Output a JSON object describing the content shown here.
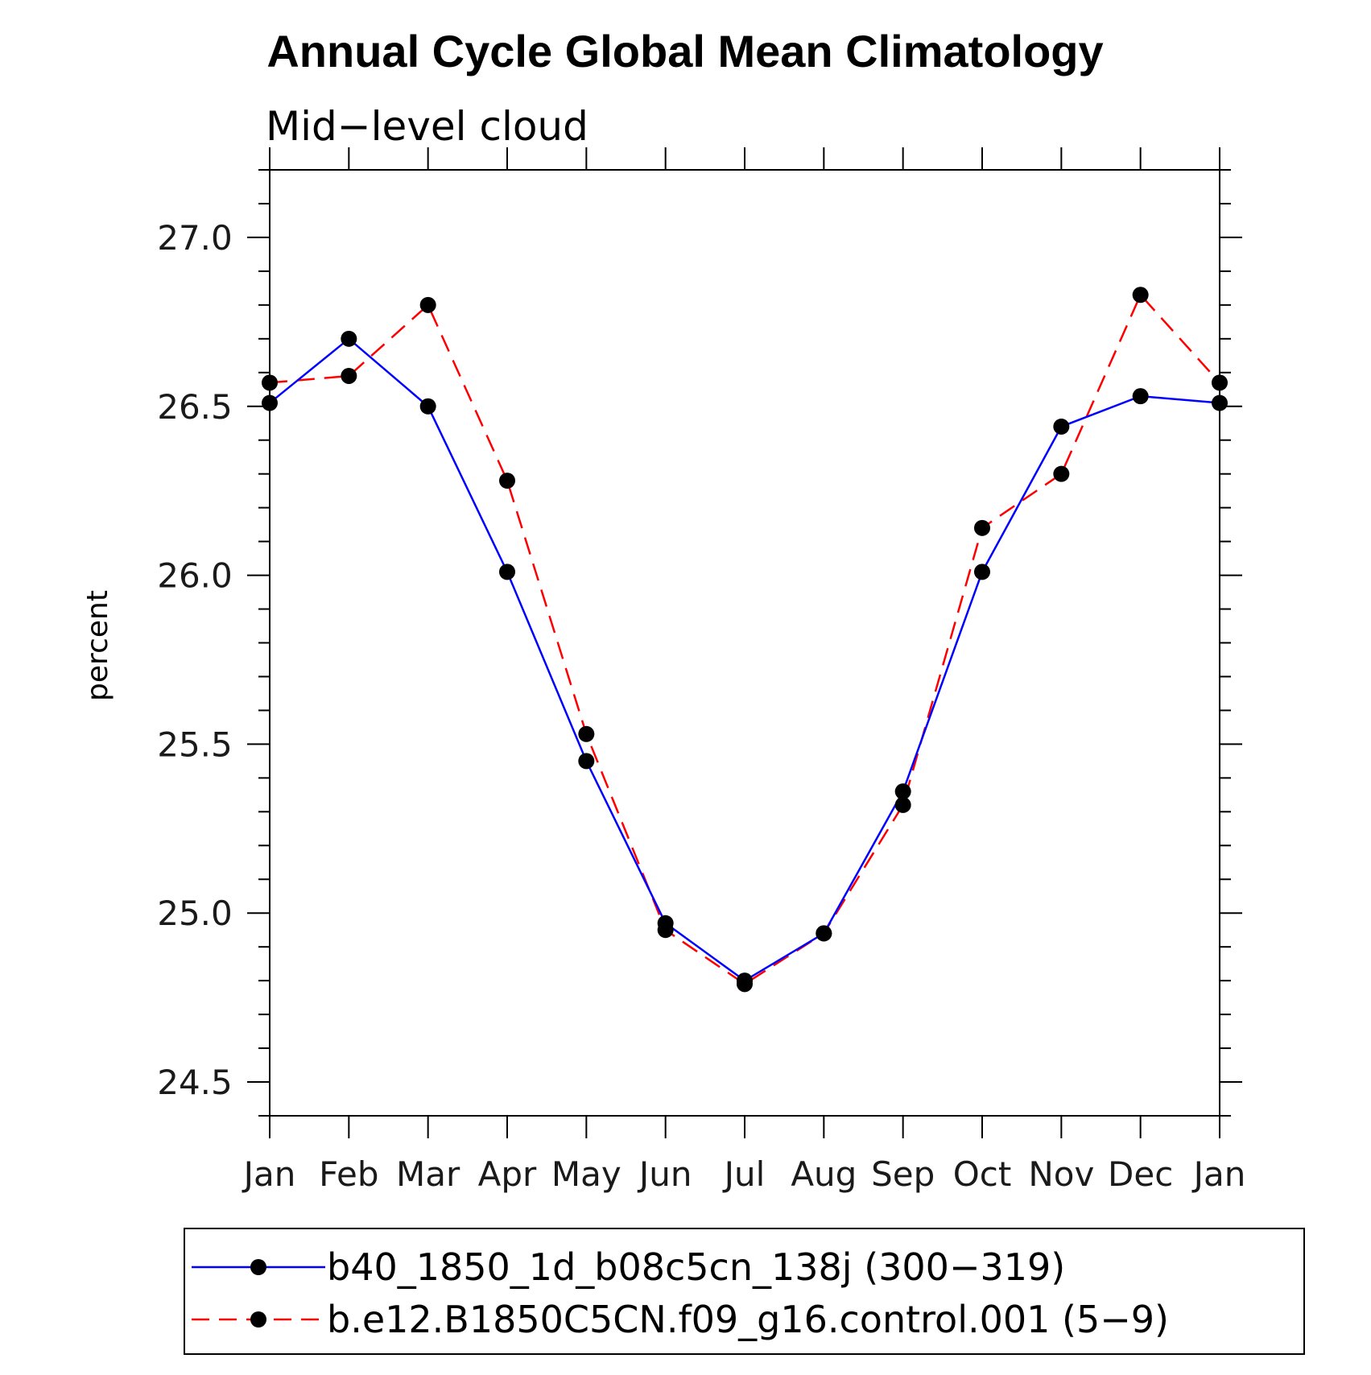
{
  "chart_data": {
    "type": "line",
    "title": "Annual Cycle Global Mean Climatology",
    "subtitle": "Mid−level cloud",
    "xlabel": "",
    "ylabel": "percent",
    "categories": [
      "Jan",
      "Feb",
      "Mar",
      "Apr",
      "May",
      "Jun",
      "Jul",
      "Aug",
      "Sep",
      "Oct",
      "Nov",
      "Dec",
      "Jan"
    ],
    "ylim": [
      24.4,
      27.2
    ],
    "yticks": [
      24.5,
      25.0,
      25.5,
      26.0,
      26.5,
      27.0
    ],
    "ytick_labels": [
      "24.5",
      "25.0",
      "25.5",
      "26.0",
      "26.5",
      "27.0"
    ],
    "grid": false,
    "legend_position": "bottom",
    "series": [
      {
        "name": "b40_1850_1d_b08c5cn_138j (300−319)",
        "color": "#0000ff",
        "line_style": "solid",
        "marker": "filled-circle",
        "values": [
          26.51,
          26.7,
          26.5,
          26.01,
          25.45,
          24.97,
          24.8,
          24.94,
          25.36,
          26.01,
          26.44,
          26.53,
          26.51
        ]
      },
      {
        "name": "b.e12.B1850C5CN.f09_g16.control.001 (5−9)",
        "color": "#ff0000",
        "line_style": "dashed",
        "marker": "filled-circle",
        "values": [
          26.57,
          26.59,
          26.8,
          26.28,
          25.53,
          24.95,
          24.79,
          24.94,
          25.32,
          26.14,
          26.3,
          26.83,
          26.57
        ]
      }
    ]
  }
}
